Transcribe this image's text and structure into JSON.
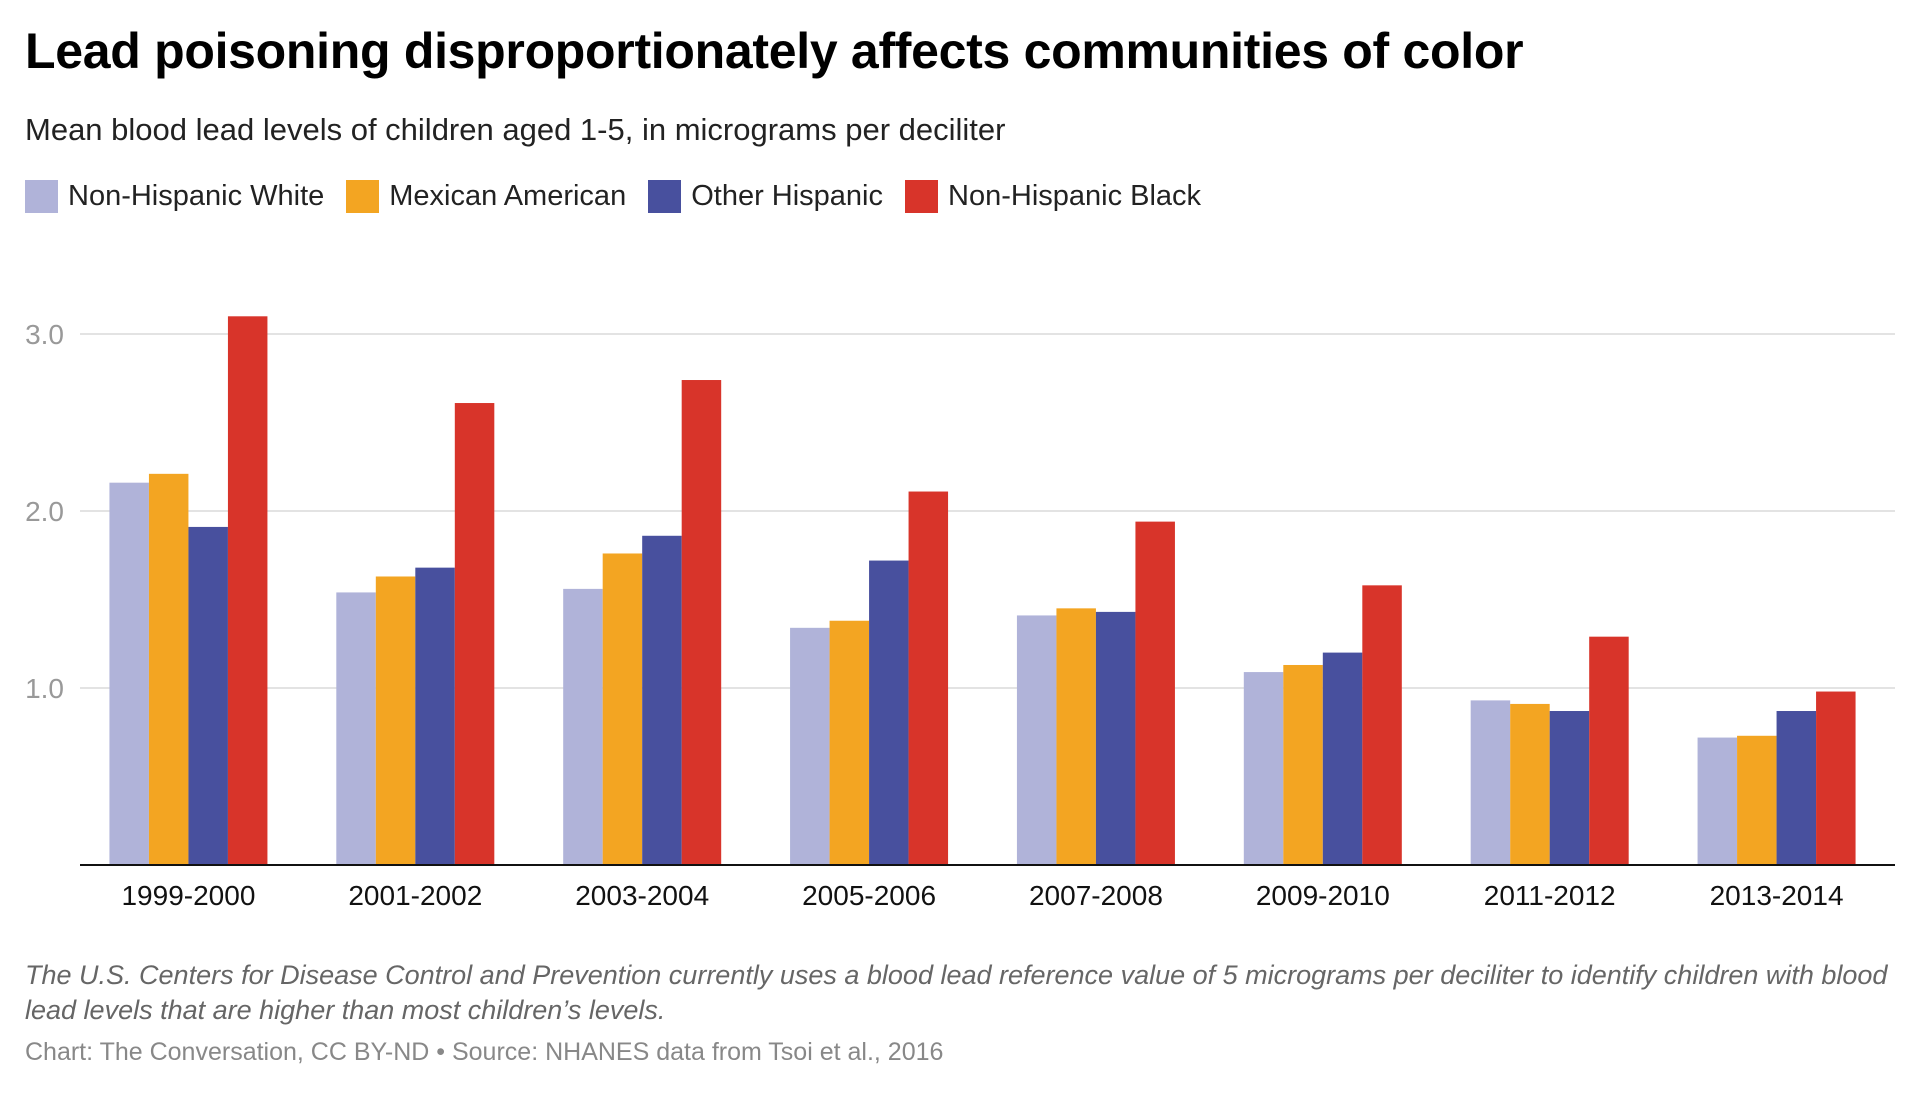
{
  "chart_data": {
    "type": "bar",
    "title": "Lead poisoning disproportionately affects communities of color",
    "subtitle": "Mean blood lead levels of children aged 1-5, in micrograms per deciliter",
    "xlabel": "",
    "ylabel": "",
    "ylim": [
      0,
      3.2
    ],
    "yticks": [
      1.0,
      2.0,
      3.0
    ],
    "ytick_labels": [
      "1.0",
      "2.0",
      "3.0"
    ],
    "grid": true,
    "legend_position": "top-left",
    "categories": [
      "1999-2000",
      "2001-2002",
      "2003-2004",
      "2005-2006",
      "2007-2008",
      "2009-2010",
      "2011-2012",
      "2013-2014"
    ],
    "series": [
      {
        "name": "Non-Hispanic White",
        "color": "#b0b3d9",
        "values": [
          2.16,
          1.54,
          1.56,
          1.34,
          1.41,
          1.09,
          0.93,
          0.72
        ]
      },
      {
        "name": "Mexican American",
        "color": "#f3a522",
        "values": [
          2.21,
          1.63,
          1.76,
          1.38,
          1.45,
          1.13,
          0.91,
          0.73
        ]
      },
      {
        "name": "Other Hispanic",
        "color": "#48509e",
        "values": [
          1.91,
          1.68,
          1.86,
          1.72,
          1.43,
          1.2,
          0.87,
          0.87
        ]
      },
      {
        "name": "Non-Hispanic Black",
        "color": "#d8342a",
        "values": [
          3.1,
          2.61,
          2.74,
          2.11,
          1.94,
          1.58,
          1.29,
          0.98
        ]
      }
    ],
    "note": "The U.S. Centers for Disease Control and Prevention currently uses a blood lead reference value of 5 micrograms per deciliter to identify children with blood lead levels that are higher than most children’s levels.",
    "credit": "Chart: The Conversation, CC BY-ND • Source: NHANES data from Tsoi et al., 2016"
  }
}
